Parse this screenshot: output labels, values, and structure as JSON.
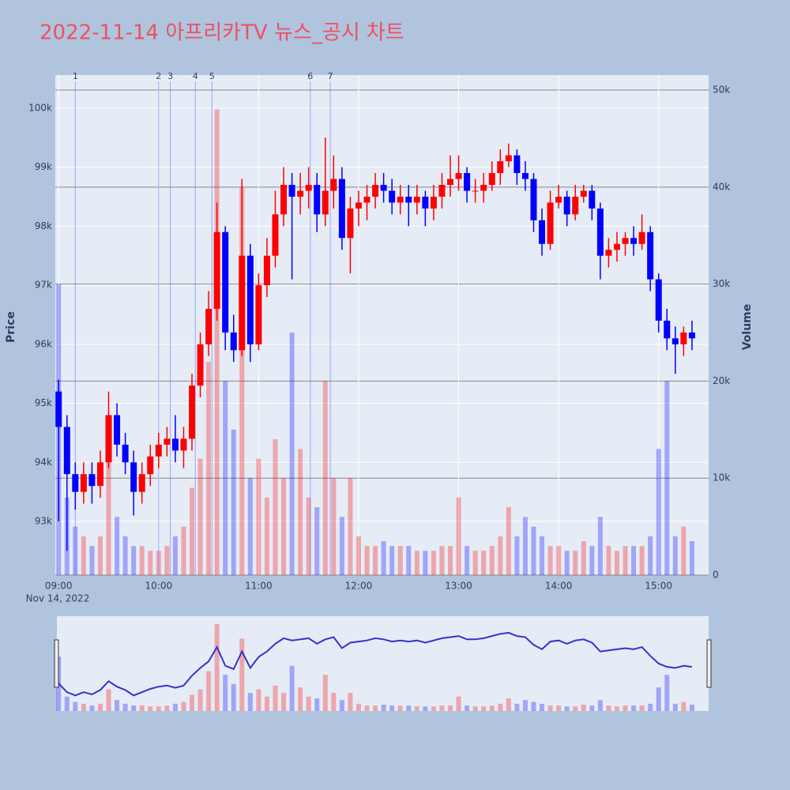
{
  "chart_data": {
    "type": "candlestick",
    "title": "2022-11-14 아프리카TV 뉴스_공시 차트",
    "y_label": "Price",
    "y2_label": "Volume",
    "x_date_label": "Nov 14, 2022",
    "increasing_color": "#ff0000",
    "decreasing_color": "#0000ff",
    "grid": true,
    "x": [
      "2022-11-14 09:00",
      "2022-11-14 09:05",
      "2022-11-14 09:10",
      "2022-11-14 09:15",
      "2022-11-14 09:20",
      "2022-11-14 09:25",
      "2022-11-14 09:30",
      "2022-11-14 09:35",
      "2022-11-14 09:40",
      "2022-11-14 09:45",
      "2022-11-14 09:50",
      "2022-11-14 09:55",
      "2022-11-14 10:00",
      "2022-11-14 10:05",
      "2022-11-14 10:10",
      "2022-11-14 10:15",
      "2022-11-14 10:20",
      "2022-11-14 10:25",
      "2022-11-14 10:30",
      "2022-11-14 10:35",
      "2022-11-14 10:40",
      "2022-11-14 10:45",
      "2022-11-14 10:50",
      "2022-11-14 10:55",
      "2022-11-14 11:00",
      "2022-11-14 11:05",
      "2022-11-14 11:10",
      "2022-11-14 11:15",
      "2022-11-14 11:20",
      "2022-11-14 11:25",
      "2022-11-14 11:30",
      "2022-11-14 11:35",
      "2022-11-14 11:40",
      "2022-11-14 11:45",
      "2022-11-14 11:50",
      "2022-11-14 11:55",
      "2022-11-14 12:00",
      "2022-11-14 12:05",
      "2022-11-14 12:10",
      "2022-11-14 12:15",
      "2022-11-14 12:20",
      "2022-11-14 12:25",
      "2022-11-14 12:30",
      "2022-11-14 12:35",
      "2022-11-14 12:40",
      "2022-11-14 12:45",
      "2022-11-14 12:50",
      "2022-11-14 12:55",
      "2022-11-14 13:00",
      "2022-11-14 13:05",
      "2022-11-14 13:10",
      "2022-11-14 13:15",
      "2022-11-14 13:20",
      "2022-11-14 13:25",
      "2022-11-14 13:30",
      "2022-11-14 13:35",
      "2022-11-14 13:40",
      "2022-11-14 13:45",
      "2022-11-14 13:50",
      "2022-11-14 13:55",
      "2022-11-14 14:00",
      "2022-11-14 14:05",
      "2022-11-14 14:10",
      "2022-11-14 14:15",
      "2022-11-14 14:20",
      "2022-11-14 14:25",
      "2022-11-14 14:30",
      "2022-11-14 14:35",
      "2022-11-14 14:40",
      "2022-11-14 14:45",
      "2022-11-14 14:50",
      "2022-11-14 14:55",
      "2022-11-14 15:00",
      "2022-11-14 15:05",
      "2022-11-14 15:10",
      "2022-11-14 15:15",
      "2022-11-14 15:20"
    ],
    "open": [
      95200,
      94600,
      93800,
      93500,
      93800,
      93600,
      94000,
      94800,
      94300,
      94000,
      93500,
      93800,
      94100,
      94300,
      94400,
      94200,
      94400,
      95300,
      96000,
      96600,
      97900,
      96200,
      95900,
      97500,
      96000,
      97000,
      97500,
      98200,
      98700,
      98500,
      98600,
      98700,
      98200,
      98600,
      98800,
      97800,
      98300,
      98400,
      98500,
      98700,
      98600,
      98400,
      98500,
      98400,
      98500,
      98300,
      98500,
      98700,
      98800,
      98900,
      98600,
      98600,
      98700,
      98900,
      99100,
      99200,
      98900,
      98800,
      98100,
      97700,
      98400,
      98500,
      98200,
      98500,
      98600,
      98300,
      97500,
      97600,
      97700,
      97800,
      97700,
      97900,
      97100,
      96400,
      96100,
      96000,
      96200
    ],
    "high": [
      95400,
      94800,
      94000,
      94000,
      94000,
      94200,
      95200,
      95000,
      94500,
      94200,
      94000,
      94300,
      94500,
      94600,
      94800,
      94600,
      95500,
      96200,
      96900,
      98400,
      98000,
      96500,
      98800,
      97700,
      97200,
      97800,
      98600,
      99000,
      98900,
      98900,
      99000,
      98900,
      99500,
      99200,
      99000,
      98500,
      98600,
      98700,
      98900,
      98900,
      98800,
      98700,
      98700,
      98700,
      98600,
      98700,
      98900,
      99200,
      99200,
      99000,
      98800,
      98900,
      99100,
      99300,
      99400,
      99300,
      99100,
      98900,
      98300,
      98600,
      98700,
      98600,
      98700,
      98700,
      98700,
      98400,
      97800,
      97900,
      97900,
      98000,
      98200,
      98000,
      97200,
      96600,
      96300,
      96300,
      96400
    ],
    "low": [
      93000,
      92500,
      93200,
      93300,
      93300,
      93400,
      93900,
      94100,
      93800,
      93100,
      93300,
      93600,
      93900,
      94100,
      94000,
      93900,
      94200,
      95100,
      95800,
      96400,
      95900,
      95700,
      95800,
      95700,
      95900,
      96800,
      97300,
      98000,
      97100,
      98200,
      98300,
      97900,
      98000,
      98300,
      97600,
      97200,
      98000,
      98100,
      98300,
      98400,
      98200,
      98200,
      98000,
      98200,
      98000,
      98100,
      98300,
      98500,
      98600,
      98400,
      98400,
      98400,
      98600,
      98700,
      99000,
      98700,
      98600,
      97900,
      97500,
      97600,
      98300,
      98000,
      98100,
      98400,
      98100,
      97100,
      97300,
      97400,
      97500,
      97500,
      97600,
      96900,
      96200,
      95900,
      95500,
      95800,
      95900
    ],
    "close": [
      94600,
      93800,
      93500,
      93800,
      93600,
      94000,
      94800,
      94300,
      94000,
      93500,
      93800,
      94100,
      94300,
      94400,
      94200,
      94400,
      95300,
      96000,
      96600,
      97900,
      96200,
      95900,
      97500,
      96000,
      97000,
      97500,
      98200,
      98700,
      98500,
      98600,
      98700,
      98200,
      98600,
      98800,
      97800,
      98300,
      98400,
      98500,
      98700,
      98600,
      98400,
      98500,
      98400,
      98500,
      98300,
      98500,
      98700,
      98800,
      98900,
      98600,
      98600,
      98700,
      98900,
      99100,
      99200,
      98900,
      98800,
      98100,
      97700,
      98400,
      98500,
      98200,
      98500,
      98600,
      98300,
      97500,
      97600,
      97700,
      97800,
      97700,
      97900,
      97100,
      96400,
      96100,
      96000,
      96200,
      96100
    ],
    "volume": [
      30000,
      8000,
      5000,
      4000,
      3000,
      4000,
      12000,
      6000,
      4000,
      3000,
      3000,
      2500,
      2500,
      3000,
      4000,
      5000,
      9000,
      12000,
      22000,
      48000,
      20000,
      15000,
      40000,
      10000,
      12000,
      8000,
      14000,
      10000,
      25000,
      13000,
      8000,
      7000,
      20000,
      10000,
      6000,
      10000,
      4000,
      3000,
      3000,
      3500,
      3000,
      3000,
      3000,
      2500,
      2500,
      2500,
      3000,
      3000,
      8000,
      3000,
      2500,
      2500,
      3000,
      4000,
      7000,
      4000,
      6000,
      5000,
      4000,
      3000,
      3000,
      2500,
      2500,
      3500,
      3000,
      6000,
      3000,
      2500,
      3000,
      3000,
      3000,
      4000,
      13000,
      20000,
      4000,
      5000,
      3500
    ],
    "annotations": [
      {
        "x": "2022-11-14 09:10",
        "label": "1"
      },
      {
        "x": "2022-11-14 10:00",
        "label": "2"
      },
      {
        "x": "2022-11-14 10:07",
        "label": "3"
      },
      {
        "x": "2022-11-14 10:22",
        "label": "4"
      },
      {
        "x": "2022-11-14 10:32",
        "label": "5"
      },
      {
        "x": "2022-11-14 11:31",
        "label": "6"
      },
      {
        "x": "2022-11-14 11:43",
        "label": "7"
      }
    ],
    "xlim": [
      "2022-11-14 08:58",
      "2022-11-14 15:30"
    ],
    "xticks": [
      {
        "value": "2022-11-14 09:00",
        "label": "09:00"
      },
      {
        "value": "2022-11-14 10:00",
        "label": "10:00"
      },
      {
        "value": "2022-11-14 11:00",
        "label": "11:00"
      },
      {
        "value": "2022-11-14 12:00",
        "label": "12:00"
      },
      {
        "value": "2022-11-14 13:00",
        "label": "13:00"
      },
      {
        "value": "2022-11-14 14:00",
        "label": "14:00"
      },
      {
        "value": "2022-11-14 15:00",
        "label": "15:00"
      }
    ],
    "ylim": [
      92090,
      100560
    ],
    "yticks": [
      {
        "value": 93000,
        "label": "93k"
      },
      {
        "value": 94000,
        "label": "94k"
      },
      {
        "value": 95000,
        "label": "95k"
      },
      {
        "value": 96000,
        "label": "96k"
      },
      {
        "value": 97000,
        "label": "97k"
      },
      {
        "value": 98000,
        "label": "98k"
      },
      {
        "value": 99000,
        "label": "99k"
      },
      {
        "value": 100000,
        "label": "100k"
      }
    ],
    "y2lim": [
      0,
      51550
    ],
    "y2ticks": [
      0,
      {
        "value": 10000,
        "label": "10k"
      },
      {
        "value": 20000,
        "label": "20k"
      },
      {
        "value": 30000,
        "label": "30k"
      },
      {
        "value": 40000,
        "label": "40k"
      },
      {
        "value": 50000,
        "label": "50k"
      }
    ]
  }
}
